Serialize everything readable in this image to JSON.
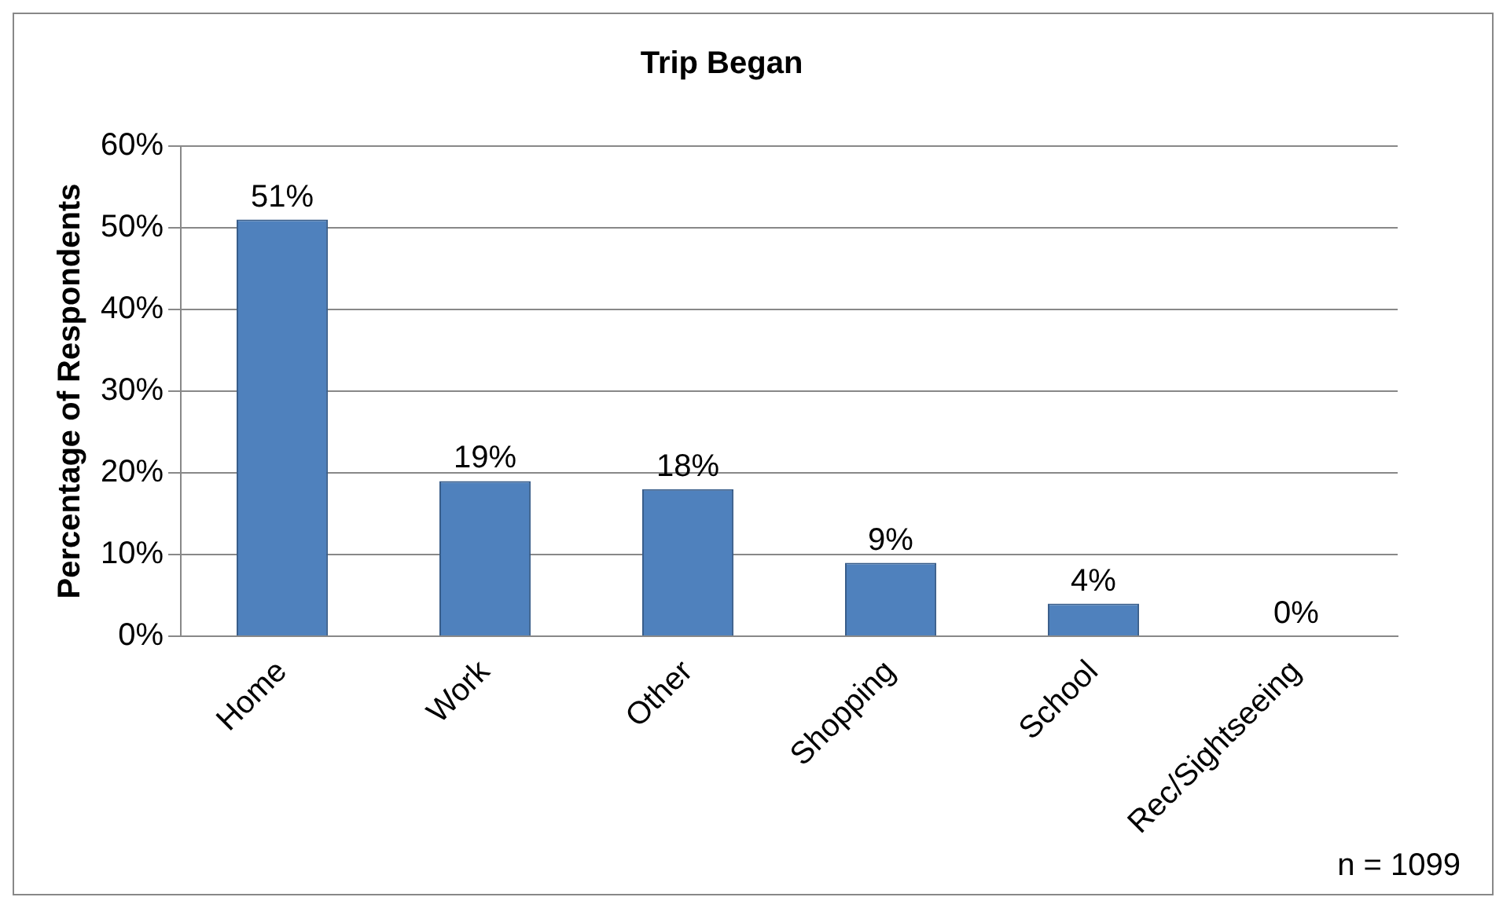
{
  "chart_data": {
    "type": "bar",
    "title": "Trip Began",
    "ylabel": "Percentage of Respondents",
    "categories": [
      "Home",
      "Work",
      "Other",
      "Shopping",
      "School",
      "Rec/Sightseeing"
    ],
    "values": [
      51,
      19,
      18,
      9,
      4,
      0
    ],
    "value_labels": [
      "51%",
      "19%",
      "18%",
      "9%",
      "4%",
      "0%"
    ],
    "color": "#4f81bd",
    "ylim": [
      0,
      60
    ],
    "yticks": [
      {
        "value": 0,
        "label": "0%"
      },
      {
        "value": 10,
        "label": "10%"
      },
      {
        "value": 20,
        "label": "20%"
      },
      {
        "value": 30,
        "label": "30%"
      },
      {
        "value": 40,
        "label": "40%"
      },
      {
        "value": 50,
        "label": "50%"
      },
      {
        "value": 60,
        "label": "60%"
      }
    ],
    "grid": "y",
    "legend": false,
    "annotations": [
      "n = 1099"
    ]
  }
}
